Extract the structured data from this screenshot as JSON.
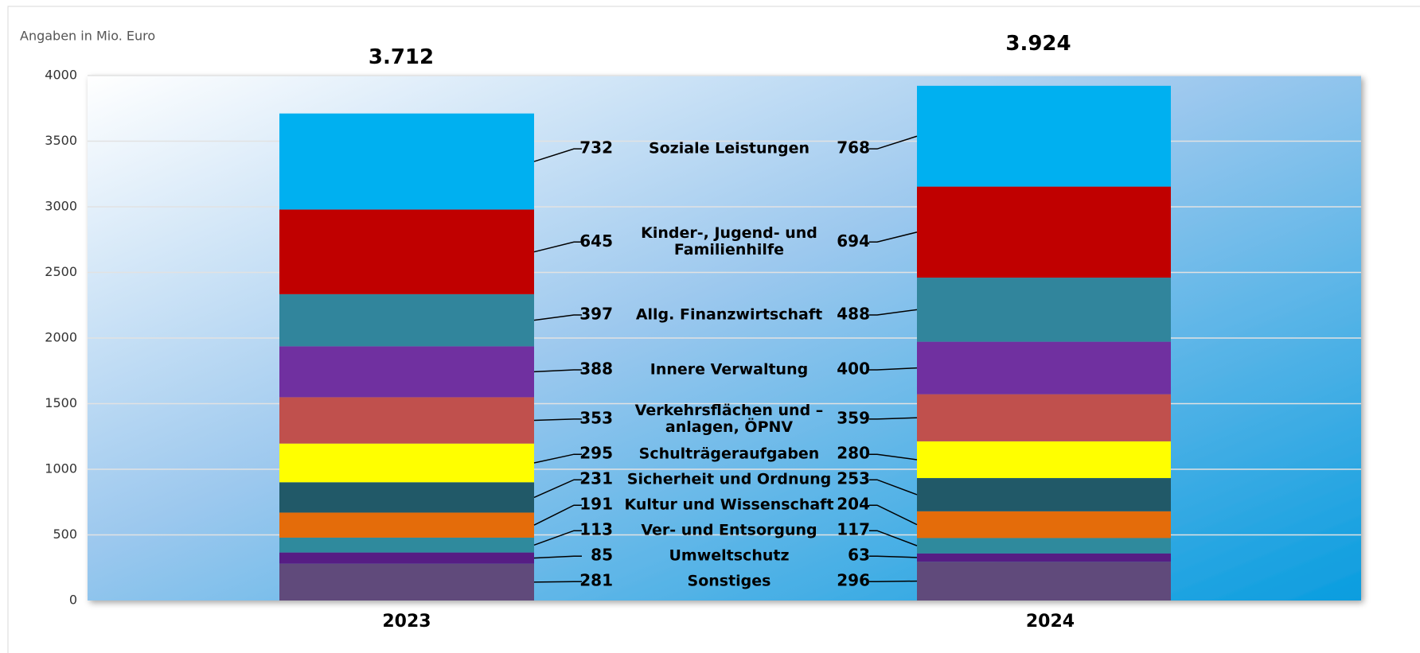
{
  "chart_data": {
    "type": "stacked_bar",
    "axis_title": "Angaben in Mio. Euro",
    "categories": [
      "2023",
      "2024"
    ],
    "totals": {
      "values": [
        3712,
        3924
      ],
      "labels": [
        "3.712",
        "3.924"
      ]
    },
    "ylim": [
      0,
      4000
    ],
    "yticks": [
      0,
      500,
      1000,
      1500,
      2000,
      2500,
      3000,
      3500,
      4000
    ],
    "grid": true,
    "series": [
      {
        "name": "Sonstiges",
        "color": "#604a7b",
        "values": [
          281,
          296
        ]
      },
      {
        "name": "Umweltschutz",
        "color": "#561d84",
        "values": [
          85,
          63
        ]
      },
      {
        "name": "Ver- und Entsorgung",
        "color": "#2f8a9d",
        "values": [
          113,
          117
        ]
      },
      {
        "name": "Kultur und Wissenschaft",
        "color": "#e46c0a",
        "values": [
          191,
          204
        ]
      },
      {
        "name": "Sicherheit und Ordnung",
        "color": "#215968",
        "values": [
          231,
          253
        ]
      },
      {
        "name": "Schulträgeraufgaben",
        "color": "#ffff00",
        "values": [
          295,
          280
        ]
      },
      {
        "name": "Verkehrsflächen und –\nanlagen, ÖPNV",
        "color": "#c0504d",
        "values": [
          353,
          359
        ]
      },
      {
        "name": "Innere Verwaltung",
        "color": "#7030a0",
        "values": [
          388,
          400
        ]
      },
      {
        "name": "Allg. Finanzwirtschaft",
        "color": "#31859c",
        "values": [
          397,
          488
        ]
      },
      {
        "name": "Kinder-, Jugend- und\nFamilienhilfe",
        "color": "#c00000",
        "values": [
          645,
          694
        ]
      },
      {
        "name": "Soziale Leistungen",
        "color": "#00b0f0",
        "values": [
          732,
          768
        ]
      }
    ]
  }
}
